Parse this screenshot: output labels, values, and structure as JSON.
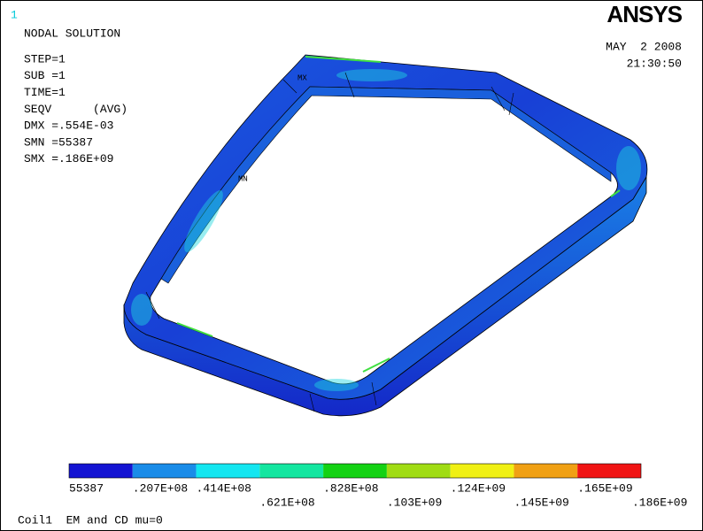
{
  "window_number": "1",
  "logo": "ANSYS",
  "title": "NODAL SOLUTION",
  "info": [
    "STEP=1",
    "SUB =1",
    "TIME=1",
    "SEQV      (AVG)",
    "DMX =.554E-03",
    "SMN =55387",
    "SMX =.186E+09"
  ],
  "date": "MAY  2 2008",
  "time": "21:30:50",
  "markers": {
    "max": "MX",
    "min": "MN"
  },
  "legend": {
    "colors": [
      "#1414d2",
      "#1a8ce8",
      "#14e6f0",
      "#14e6a0",
      "#14d214",
      "#a0dc14",
      "#f0f014",
      "#f0a014",
      "#f01414"
    ],
    "labels": [
      "55387",
      ".207E+08",
      ".414E+08",
      ".621E+08",
      ".828E+08",
      ".103E+09",
      ".124E+09",
      ".145E+09",
      ".165E+09",
      ".186E+09"
    ]
  },
  "footer": "Coil1  EM and CD mu=0"
}
